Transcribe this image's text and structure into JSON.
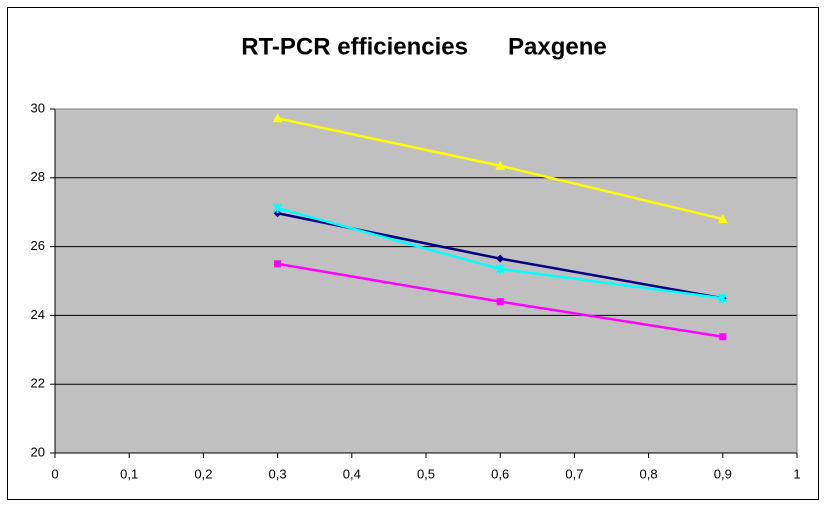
{
  "chart_data": {
    "type": "line",
    "title": "RT-PCR efficiencies      Paxgene",
    "x": [
      0.3,
      0.6,
      0.9
    ],
    "series": [
      {
        "color": "#000080",
        "marker": "diamond",
        "values": [
          26.97,
          25.65,
          24.5
        ]
      },
      {
        "color": "#ff00ff",
        "marker": "square",
        "values": [
          25.5,
          24.4,
          23.38
        ]
      },
      {
        "color": "#ffff00",
        "marker": "triangle",
        "values": [
          29.73,
          28.35,
          26.8
        ]
      },
      {
        "color": "#00ffff",
        "marker": "star",
        "values": [
          27.12,
          25.35,
          24.5
        ]
      }
    ],
    "xlim": [
      0,
      1
    ],
    "xticks": [
      0,
      {
        "value": 0.1,
        "label": "0,1"
      },
      {
        "value": 0.2,
        "label": "0,2"
      },
      {
        "value": 0.3,
        "label": "0,3"
      },
      {
        "value": 0.4,
        "label": "0,4"
      },
      {
        "value": 0.5,
        "label": "0,5"
      },
      {
        "value": 0.6,
        "label": "0,6"
      },
      {
        "value": 0.7,
        "label": "0,7"
      },
      {
        "value": 0.8,
        "label": "0,8"
      },
      {
        "value": 0.9,
        "label": "0,9"
      },
      1
    ],
    "ylim": [
      20,
      30
    ],
    "yticks": [
      20,
      22,
      24,
      26,
      28,
      30
    ],
    "grid": true,
    "plot_background": "#c0c0c0"
  }
}
